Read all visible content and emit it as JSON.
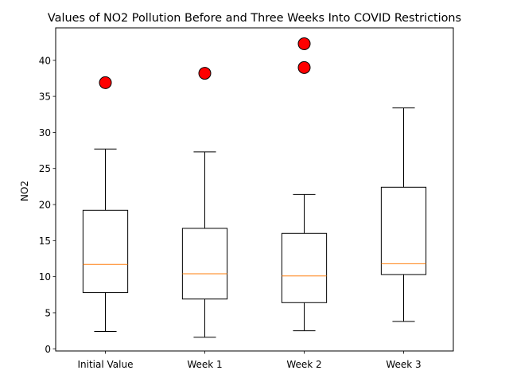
{
  "chart_data": {
    "type": "boxplot",
    "title": "Values of NO2 Pollution Before and Three Weeks Into COVID Restrictions",
    "xlabel": "",
    "ylabel": "NO2",
    "ylim": [
      -0.3,
      44.5
    ],
    "yticks": [
      0,
      5,
      10,
      15,
      20,
      25,
      30,
      35,
      40
    ],
    "categories": [
      "Initial Value",
      "Week 1",
      "Week 2",
      "Week 3"
    ],
    "boxes": [
      {
        "whisker_low": 2.4,
        "q1": 7.8,
        "median": 11.7,
        "q3": 19.2,
        "whisker_high": 27.7,
        "outliers": [
          36.9
        ]
      },
      {
        "whisker_low": 1.6,
        "q1": 6.9,
        "median": 10.4,
        "q3": 16.7,
        "whisker_high": 27.3,
        "outliers": [
          38.2
        ]
      },
      {
        "whisker_low": 2.5,
        "q1": 6.4,
        "median": 10.1,
        "q3": 16.0,
        "whisker_high": 21.4,
        "outliers": [
          39.0,
          42.3
        ]
      },
      {
        "whisker_low": 3.8,
        "q1": 10.3,
        "median": 11.8,
        "q3": 22.4,
        "whisker_high": 33.4,
        "outliers": []
      }
    ],
    "colors": {
      "box": "#000000",
      "median": "#ff7f0e",
      "outlier_fill": "#ff0000",
      "outlier_edge": "#000000"
    },
    "grid": false,
    "legend": "none"
  }
}
